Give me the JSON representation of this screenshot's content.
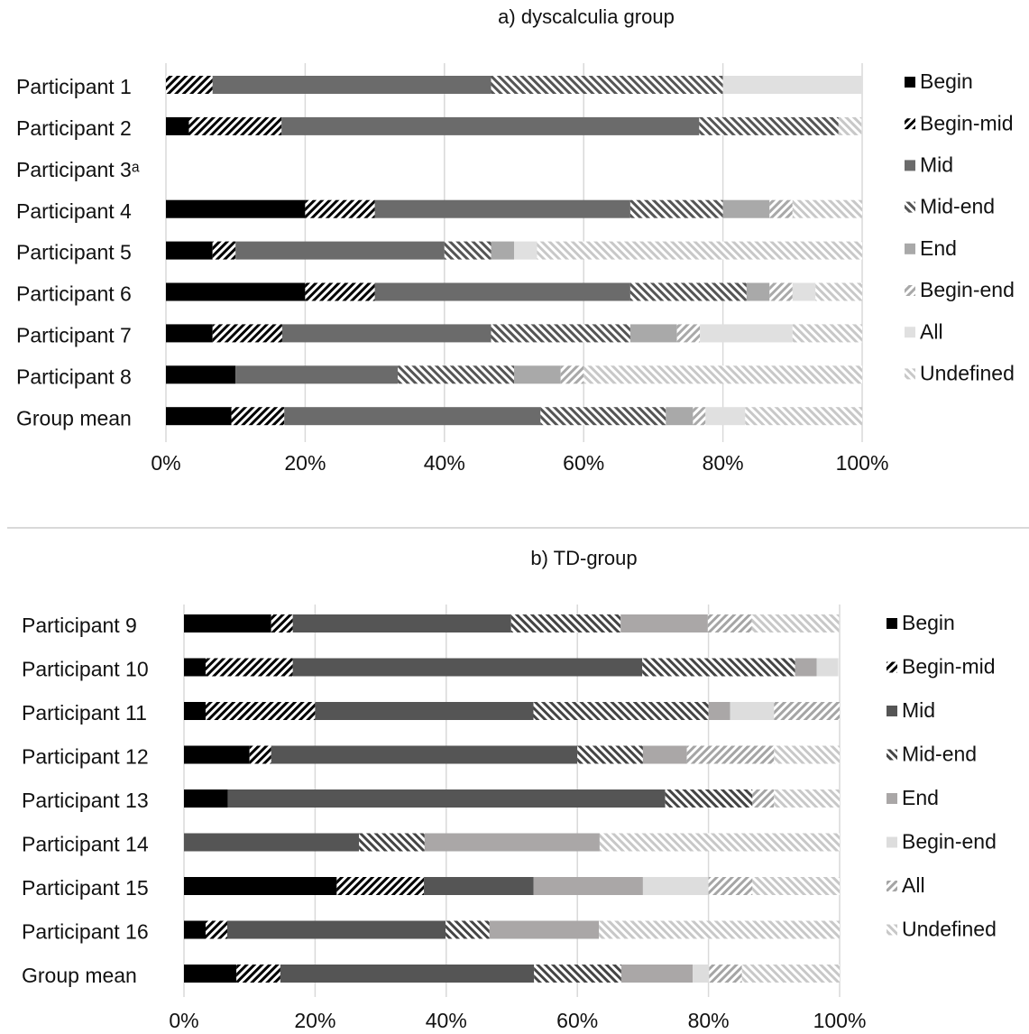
{
  "chart_data": [
    {
      "type": "bar",
      "orientation": "horizontal",
      "stacked": true,
      "title": "a) dyscalculia group",
      "categories": [
        "Participant 1",
        "Participant 2",
        "Participant 3ᵃ",
        "Participant 4",
        "Participant 5",
        "Participant 6",
        "Participant 7",
        "Participant 8",
        "Group mean"
      ],
      "series": [
        {
          "name": "Begin",
          "color": "#000000",
          "pattern": "solid",
          "values": [
            0,
            3.3,
            null,
            20,
            6.7,
            20,
            6.7,
            10,
            9.4
          ]
        },
        {
          "name": "Begin-mid",
          "color": "#000000",
          "pattern": "stripes-right",
          "values": [
            6.7,
            13.3,
            null,
            10,
            3.3,
            10,
            10,
            0,
            7.6
          ]
        },
        {
          "name": "Mid",
          "color": "#6b6b6b",
          "pattern": "solid",
          "values": [
            40,
            60,
            null,
            36.7,
            30,
            36.7,
            30,
            23.3,
            36.8
          ]
        },
        {
          "name": "Mid-end",
          "color": "#555555",
          "pattern": "stripes-left",
          "values": [
            33.3,
            20,
            null,
            13.3,
            6.7,
            16.7,
            20,
            16.7,
            18
          ]
        },
        {
          "name": "End",
          "color": "#a9a9a9",
          "pattern": "solid",
          "values": [
            0,
            0,
            null,
            6.7,
            3.3,
            3.3,
            6.7,
            6.7,
            3.9
          ]
        },
        {
          "name": "Begin-end",
          "color": "#a9a9a9",
          "pattern": "stripes-right",
          "values": [
            0,
            0,
            null,
            3.3,
            0,
            3.3,
            3.3,
            3.3,
            1.8
          ]
        },
        {
          "name": "All",
          "color": "#e0e0e0",
          "pattern": "solid",
          "values": [
            20,
            0,
            null,
            0,
            3.3,
            3.3,
            13.3,
            0,
            5.7
          ]
        },
        {
          "name": "Undefined",
          "color": "#c8c8c8",
          "pattern": "stripes-left",
          "values": [
            0,
            3.3,
            null,
            10,
            46.7,
            6.7,
            10,
            40,
            16.8
          ]
        }
      ],
      "xlim": [
        0,
        100
      ],
      "xticks": [
        {
          "value": 0,
          "label": "0%"
        },
        {
          "value": 20,
          "label": "20%"
        },
        {
          "value": 40,
          "label": "40%"
        },
        {
          "value": 60,
          "label": "60%"
        },
        {
          "value": 80,
          "label": "80%"
        },
        {
          "value": 100,
          "label": "100%"
        }
      ],
      "grid": true,
      "legend": "right"
    },
    {
      "type": "bar",
      "orientation": "horizontal",
      "stacked": true,
      "title": "b) TD-group",
      "categories": [
        "Participant 9",
        "Participant 10",
        "Participant 11",
        "Participant 12",
        "Participant 13",
        "Participant 14",
        "Participant 15",
        "Participant 16",
        "Group mean"
      ],
      "series": [
        {
          "name": "Begin",
          "color": "#000000",
          "pattern": "solid",
          "values": [
            13.3,
            3.3,
            3.3,
            10,
            6.7,
            0,
            23.3,
            3.3,
            8
          ]
        },
        {
          "name": "Begin-mid",
          "color": "#000000",
          "pattern": "stripes-right",
          "values": [
            3.3,
            13.3,
            16.7,
            3.3,
            0,
            0,
            13.3,
            3.3,
            6.7
          ]
        },
        {
          "name": "Mid",
          "color": "#555555",
          "pattern": "solid",
          "values": [
            33.3,
            53.3,
            33.3,
            46.7,
            66.7,
            26.7,
            16.7,
            33.3,
            38.7
          ]
        },
        {
          "name": "Mid-end",
          "color": "#444444",
          "pattern": "stripes-left",
          "values": [
            16.7,
            23.3,
            26.7,
            10,
            13.3,
            10,
            0,
            6.7,
            13.3
          ]
        },
        {
          "name": "End",
          "color": "#aaa7a7",
          "pattern": "solid",
          "values": [
            13.3,
            3.3,
            3.3,
            6.7,
            0,
            26.7,
            16.7,
            16.7,
            10.9
          ]
        },
        {
          "name": "Begin-end",
          "color": "#dddddd",
          "pattern": "solid",
          "values": [
            0,
            3.3,
            6.7,
            0,
            0,
            0,
            10,
            0,
            2.5
          ]
        },
        {
          "name": "All",
          "color": "#a5a5a5",
          "pattern": "stripes-right",
          "values": [
            6.7,
            0,
            10,
            13.3,
            3.3,
            0,
            6.7,
            0,
            5
          ]
        },
        {
          "name": "Undefined",
          "color": "#c8c8c8",
          "pattern": "stripes-left",
          "values": [
            13.3,
            0,
            0,
            10,
            10,
            36.6,
            13.3,
            36.7,
            14.9
          ]
        }
      ],
      "xlim": [
        0,
        100
      ],
      "xticks": [
        {
          "value": 0,
          "label": "0%"
        },
        {
          "value": 20,
          "label": "20%"
        },
        {
          "value": 40,
          "label": "40%"
        },
        {
          "value": 60,
          "label": "60%"
        },
        {
          "value": 80,
          "label": "80%"
        },
        {
          "value": 100,
          "label": "100%"
        }
      ],
      "grid": true,
      "legend": "right"
    }
  ]
}
